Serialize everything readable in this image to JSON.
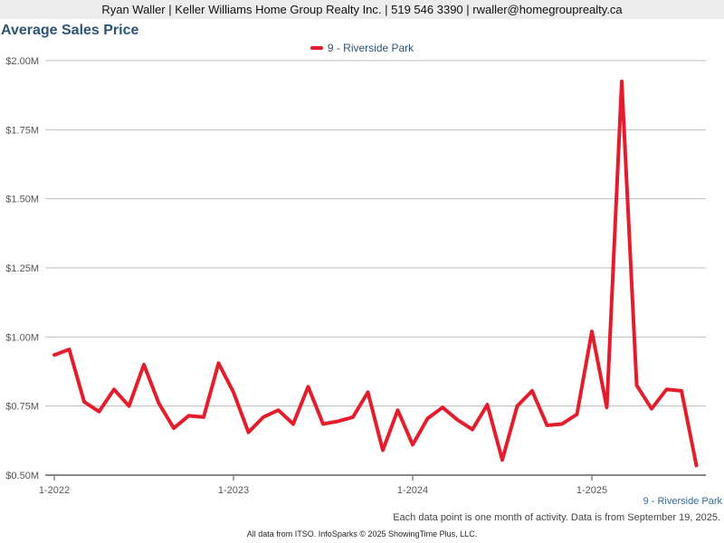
{
  "header": {
    "contact": "Ryan Waller | Keller Williams Home Group Realty Inc. | 519 546 3390 | rwaller@homegrouprealty.ca"
  },
  "colors": {
    "series": "#e31d2b",
    "title": "#2b5478",
    "series_label": "#2b6da8"
  },
  "footer": {
    "series_label": "9 - Riverside Park",
    "note": "Each data point is one month of activity. Data is from September 19, 2025.",
    "source": "All data from ITSO. InfoSparks © 2025 ShowingTime Plus, LLC."
  },
  "chart_data": {
    "type": "line",
    "title": "Average Sales Price",
    "legend_position": "top-center",
    "grid": true,
    "xlabel": "",
    "ylabel": "",
    "ylim": [
      500000,
      2000000
    ],
    "yticks": [
      {
        "value": 500000,
        "label": "$0.50M"
      },
      {
        "value": 750000,
        "label": "$0.75M"
      },
      {
        "value": 1000000,
        "label": "$1.00M"
      },
      {
        "value": 1250000,
        "label": "$1.25M"
      },
      {
        "value": 1500000,
        "label": "$1.50M"
      },
      {
        "value": 1750000,
        "label": "$1.75M"
      },
      {
        "value": 2000000,
        "label": "$2.00M"
      }
    ],
    "xticks": [
      {
        "value": "2022-01",
        "label": "1-2022"
      },
      {
        "value": "2023-01",
        "label": "1-2023"
      },
      {
        "value": "2024-01",
        "label": "1-2024"
      },
      {
        "value": "2025-01",
        "label": "1-2025"
      }
    ],
    "x": [
      "2022-01",
      "2022-02",
      "2022-03",
      "2022-04",
      "2022-05",
      "2022-06",
      "2022-07",
      "2022-08",
      "2022-09",
      "2022-10",
      "2022-11",
      "2022-12",
      "2023-01",
      "2023-02",
      "2023-03",
      "2023-04",
      "2023-05",
      "2023-06",
      "2023-07",
      "2023-08",
      "2023-09",
      "2023-10",
      "2023-11",
      "2023-12",
      "2024-01",
      "2024-02",
      "2024-03",
      "2024-04",
      "2024-05",
      "2024-06",
      "2024-07",
      "2024-08",
      "2024-09",
      "2024-10",
      "2024-11",
      "2024-12",
      "2025-01",
      "2025-02",
      "2025-03",
      "2025-04",
      "2025-05",
      "2025-06",
      "2025-07",
      "2025-08"
    ],
    "series": [
      {
        "name": "9 - Riverside Park",
        "values": [
          935000,
          955000,
          765000,
          730000,
          810000,
          750000,
          900000,
          760000,
          670000,
          715000,
          710000,
          905000,
          800000,
          655000,
          710000,
          735000,
          685000,
          820000,
          685000,
          695000,
          710000,
          800000,
          590000,
          735000,
          610000,
          705000,
          745000,
          700000,
          665000,
          755000,
          555000,
          750000,
          805000,
          680000,
          685000,
          720000,
          1020000,
          745000,
          1925000,
          825000,
          740000,
          810000,
          805000,
          535000
        ]
      }
    ]
  }
}
